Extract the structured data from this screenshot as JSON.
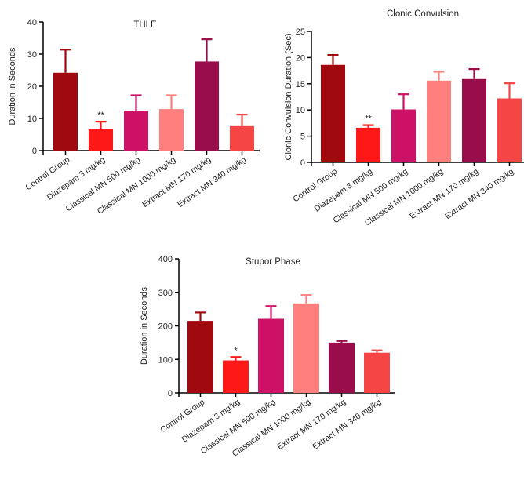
{
  "chart_data": [
    {
      "type": "bar",
      "title": "THLE",
      "xlabel": "",
      "ylabel": "Duration in Seconds",
      "ylim": [
        0,
        40
      ],
      "yticks": [
        0,
        10,
        20,
        30,
        40
      ],
      "categories": [
        "Control Group",
        "Diazepam 3 mg/kg",
        "Classical MN 500 mg/kg",
        "Classical MN 1000 mg/kg",
        "Extract MN 170 mg/kg",
        "Extract MN 340 mg/kg"
      ],
      "values": [
        24.2,
        6.6,
        12.4,
        12.9,
        27.7,
        7.6
      ],
      "errors": [
        7.2,
        2.4,
        4.8,
        4.3,
        6.9,
        3.6
      ],
      "significance": [
        "",
        "**",
        "",
        "",
        "",
        ""
      ],
      "colors": [
        "#a00a0f",
        "#ff1818",
        "#cc1166",
        "#ff7f7f",
        "#990d4a",
        "#f54545"
      ]
    },
    {
      "type": "bar",
      "title": "Clonic Convulsion",
      "xlabel": "",
      "ylabel": "Clonic Convulsion Duration (Sec)",
      "ylim": [
        0,
        25
      ],
      "yticks": [
        0,
        5,
        10,
        15,
        20,
        25
      ],
      "categories": [
        "Control Group",
        "Diazepam 3 mg/kg",
        "Classical MN 500 mg/kg",
        "Classical MN 1000 mg/kg",
        "Extract MN 170 mg/kg",
        "Extract MN 340 mg/kg"
      ],
      "values": [
        18.6,
        6.6,
        10.1,
        15.6,
        15.9,
        12.2
      ],
      "errors": [
        1.9,
        0.5,
        2.9,
        1.7,
        1.9,
        2.9
      ],
      "significance": [
        "",
        "**",
        "",
        "",
        "",
        ""
      ],
      "colors": [
        "#a00a0f",
        "#ff1818",
        "#cc1166",
        "#ff7f7f",
        "#990d4a",
        "#f54545"
      ]
    },
    {
      "type": "bar",
      "title": "Stupor Phase",
      "xlabel": "",
      "ylabel": "Duration in Seconds",
      "ylim": [
        0,
        400
      ],
      "yticks": [
        0,
        100,
        200,
        300,
        400
      ],
      "categories": [
        "Control Group",
        "Diazepam 3 mg/kg",
        "Classical MN 500 mg/kg",
        "Classical MN 1000 mg/kg",
        "Extract MN 170 mg/kg",
        "Extract MN 340 mg/kg"
      ],
      "values": [
        215,
        97,
        221,
        267,
        150,
        120
      ],
      "errors": [
        25,
        10,
        38,
        25,
        5,
        7
      ],
      "significance": [
        "",
        "*",
        "",
        "",
        "",
        ""
      ],
      "colors": [
        "#a00a0f",
        "#ff1818",
        "#cc1166",
        "#ff7f7f",
        "#990d4a",
        "#f54545"
      ]
    }
  ]
}
